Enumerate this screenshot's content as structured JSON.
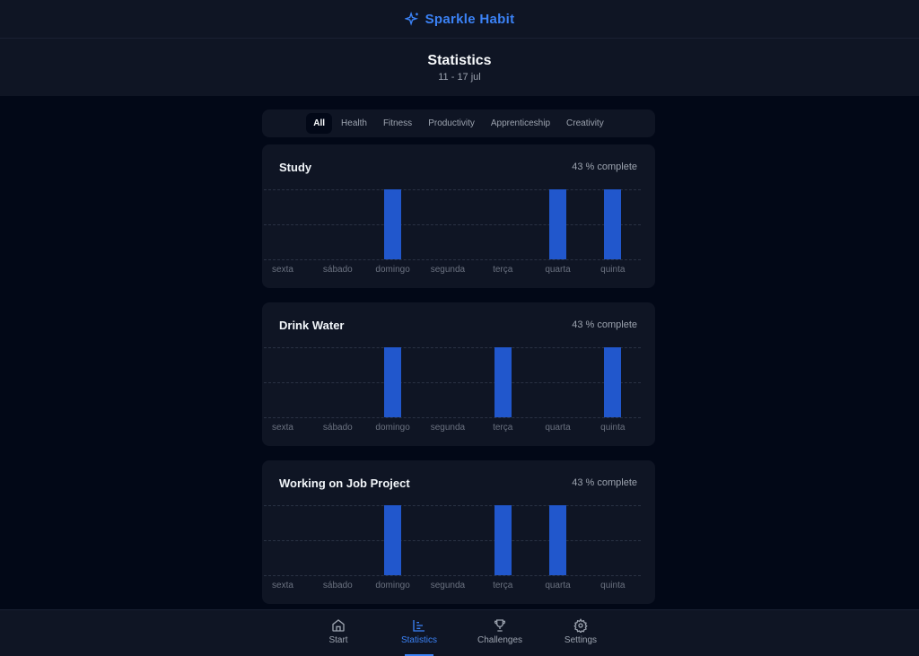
{
  "app": {
    "name": "Sparkle Habit",
    "logo_icon": "sparkles-icon",
    "accent": "#3b82f6",
    "bar_color": "#2157cc"
  },
  "header": {
    "title": "Statistics",
    "date_range": "11 - 17 jul"
  },
  "tabs": [
    {
      "label": "All",
      "active": true
    },
    {
      "label": "Health"
    },
    {
      "label": "Fitness"
    },
    {
      "label": "Productivity"
    },
    {
      "label": "Apprenticeship"
    },
    {
      "label": "Creativity"
    }
  ],
  "days": [
    "sexta",
    "sábado",
    "domingo",
    "segunda",
    "terça",
    "quarta",
    "quinta"
  ],
  "habits": [
    {
      "name": "Study",
      "progress": "43 % complete",
      "completed": [
        0,
        0,
        1,
        0,
        0,
        1,
        1
      ]
    },
    {
      "name": "Drink Water",
      "progress": "43 % complete",
      "completed": [
        0,
        0,
        1,
        0,
        1,
        0,
        1
      ]
    },
    {
      "name": "Working on Job Project",
      "progress": "43 % complete",
      "completed": [
        0,
        0,
        1,
        0,
        1,
        1,
        0
      ]
    }
  ],
  "nav": [
    {
      "label": "Start",
      "icon": "home-icon"
    },
    {
      "label": "Statistics",
      "icon": "bar-chart-icon",
      "active": true
    },
    {
      "label": "Challenges",
      "icon": "trophy-icon"
    },
    {
      "label": "Settings",
      "icon": "gear-icon"
    }
  ]
}
